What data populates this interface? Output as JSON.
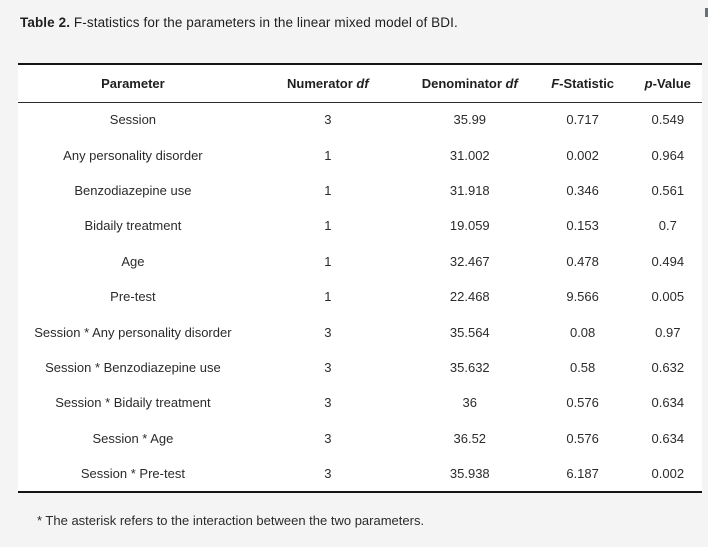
{
  "page": {
    "background_color": "#f4f4f5",
    "table_background_color": "#ffffff",
    "rule_color": "#141414",
    "title": {
      "bold": "Table 2.",
      "rest": " F-statistics for the parameters in the linear mixed model of BDI."
    },
    "footnote": "* The asterisk refers to the interaction between the two parameters."
  },
  "table": {
    "headers": [
      {
        "name": "parameter",
        "segments": [
          {
            "text": "Parameter"
          }
        ]
      },
      {
        "name": "numerator-df",
        "segments": [
          {
            "text": "Numerator "
          },
          {
            "text": "df",
            "italic": true
          }
        ]
      },
      {
        "name": "denominator-df",
        "segments": [
          {
            "text": "Denominator "
          },
          {
            "text": "df",
            "italic": true
          }
        ]
      },
      {
        "name": "f-statistic",
        "segments": [
          {
            "text": "F",
            "italic": true
          },
          {
            "text": "-Statistic"
          }
        ]
      },
      {
        "name": "p-value",
        "segments": [
          {
            "text": "p",
            "italic": true
          },
          {
            "text": "-Value"
          }
        ]
      }
    ],
    "rows": [
      [
        "Session",
        "3",
        "35.99",
        "0.717",
        "0.549"
      ],
      [
        "Any personality disorder",
        "1",
        "31.002",
        "0.002",
        "0.964"
      ],
      [
        "Benzodiazepine use",
        "1",
        "31.918",
        "0.346",
        "0.561"
      ],
      [
        "Bidaily treatment",
        "1",
        "19.059",
        "0.153",
        "0.7"
      ],
      [
        "Age",
        "1",
        "32.467",
        "0.478",
        "0.494"
      ],
      [
        "Pre-test",
        "1",
        "22.468",
        "9.566",
        "0.005"
      ],
      [
        "Session * Any personality disorder",
        "3",
        "35.564",
        "0.08",
        "0.97"
      ],
      [
        "Session * Benzodiazepine use",
        "3",
        "35.632",
        "0.58",
        "0.632"
      ],
      [
        "Session * Bidaily treatment",
        "3",
        "36",
        "0.576",
        "0.634"
      ],
      [
        "Session * Age",
        "3",
        "36.52",
        "0.576",
        "0.634"
      ],
      [
        "Session * Pre-test",
        "3",
        "35.938",
        "6.187",
        "0.002"
      ]
    ]
  }
}
